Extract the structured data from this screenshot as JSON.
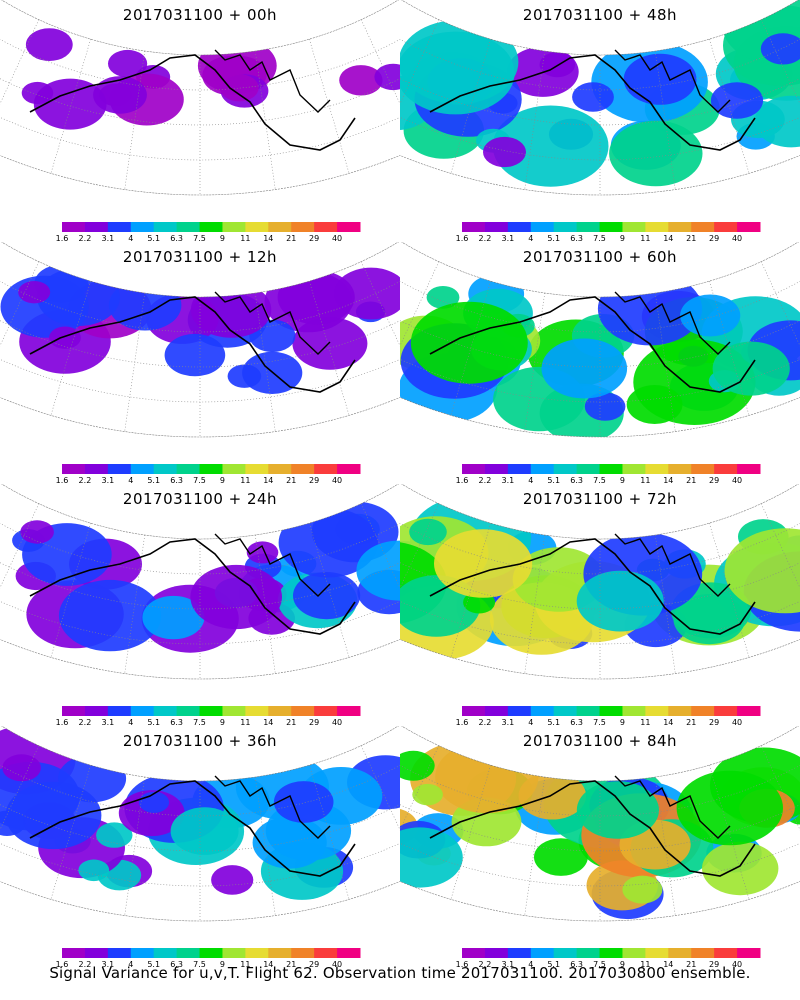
{
  "chart_data": {
    "type": "heatmap",
    "description_caption": "Signal Variance for u,v,T. Flight 62. Observation time 2017031100. 2017030800 ensemble.",
    "colorbar": {
      "levels": [
        "1.6",
        "2.2",
        "3.1",
        "4",
        "5.1",
        "6.3",
        "7.5",
        "9",
        "11",
        "14",
        "21",
        "29",
        "40"
      ],
      "colors": [
        "#a000c8",
        "#8200dc",
        "#1e3cff",
        "#00a0ff",
        "#00c8c8",
        "#00d28c",
        "#00dc00",
        "#a0e632",
        "#e6dc32",
        "#e6af2d",
        "#f08228",
        "#fa3c3c",
        "#f00082"
      ]
    },
    "panels": [
      {
        "title": "2017031100 + 00h",
        "lead_h": 0,
        "coverage": 0.25,
        "intensity": 0.12
      },
      {
        "title": "2017031100 + 48h",
        "lead_h": 48,
        "coverage": 0.85,
        "intensity": 0.38
      },
      {
        "title": "2017031100 + 12h",
        "lead_h": 12,
        "coverage": 0.45,
        "intensity": 0.18
      },
      {
        "title": "2017031100 + 60h",
        "lead_h": 60,
        "coverage": 0.9,
        "intensity": 0.48
      },
      {
        "title": "2017031100 + 24h",
        "lead_h": 24,
        "coverage": 0.6,
        "intensity": 0.26
      },
      {
        "title": "2017031100 + 72h",
        "lead_h": 72,
        "coverage": 0.93,
        "intensity": 0.58
      },
      {
        "title": "2017031100 + 36h",
        "lead_h": 36,
        "coverage": 0.75,
        "intensity": 0.32
      },
      {
        "title": "2017031100 + 84h",
        "lead_h": 84,
        "coverage": 0.96,
        "intensity": 0.66
      }
    ]
  }
}
